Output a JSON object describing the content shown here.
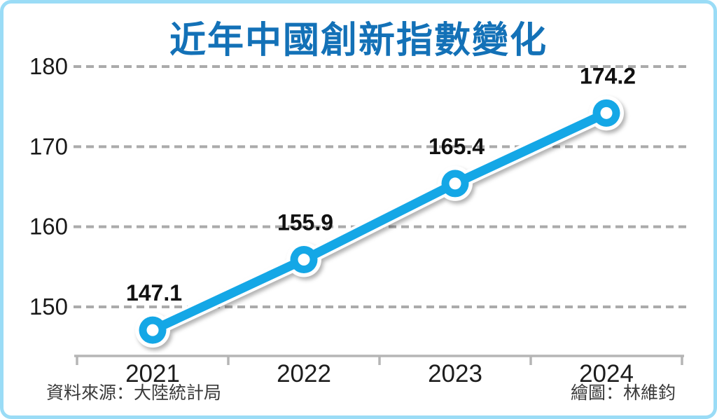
{
  "title": "近年中國創新指數變化",
  "footer": {
    "source": "資料來源：大陸統計局",
    "credit": "繪圖：林維鈞"
  },
  "colors": {
    "title": "#1371b7",
    "line": "#14a7e6",
    "marker_fill": "#14a7e6",
    "marker_casing": "#ffffff",
    "grid": "#ababab",
    "axis": "#b5b5b5",
    "data_label": "#111111",
    "tick_label": "#1a1a1a",
    "border": "#9adcf6",
    "footer_text": "#3a3a3a"
  },
  "chart_data": {
    "type": "line",
    "title": "近年中國創新指數變化",
    "categories": [
      "2021",
      "2022",
      "2023",
      "2024"
    ],
    "values": [
      147.1,
      155.9,
      165.4,
      174.2
    ],
    "data_labels": [
      "147.1",
      "155.9",
      "165.4",
      "174.2"
    ],
    "xlabel": "",
    "ylabel": "",
    "yticks": [
      150,
      160,
      170,
      180
    ],
    "ytick_labels": [
      "150",
      "160",
      "170",
      "180"
    ],
    "ylim": [
      145,
      182
    ],
    "grid": true,
    "grid_style": "dashed",
    "legend": false,
    "marker": "donut-circle",
    "source": "資料來源：大陸統計局",
    "credit": "繪圖：林維鈞"
  }
}
